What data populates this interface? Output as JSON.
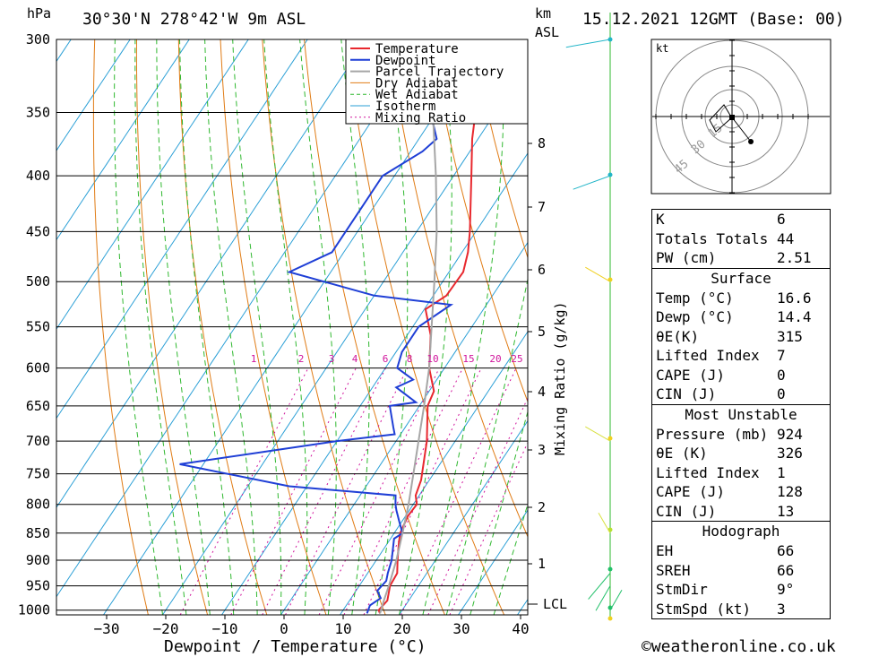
{
  "header": {
    "unit_left": "hPa",
    "location": "30°30'N 278°42'W 9m ASL",
    "unit_right_1": "km",
    "unit_right_2": "ASL",
    "datetime": "15.12.2021 12GMT (Base: 00)"
  },
  "footer": {
    "x_axis_title": "Dewpoint / Temperature (°C)",
    "copyright": "©weatheronline.co.uk"
  },
  "chart_data": {
    "type": "line",
    "title": "30°30'N 278°42'W 9m ASL",
    "xlabel": "Dewpoint / Temperature (°C)",
    "ylabel": "hPa",
    "y_scale": "log (pressure)",
    "x_skewed": true,
    "x_ticks": [
      -30,
      -20,
      -10,
      0,
      10,
      20,
      30,
      40
    ],
    "p_levels": [
      300,
      350,
      400,
      450,
      500,
      550,
      600,
      650,
      700,
      750,
      800,
      850,
      900,
      950,
      1000
    ],
    "km_ticks": [
      1,
      2,
      3,
      4,
      5,
      6,
      7,
      8
    ],
    "lcl_label": "LCL",
    "mixing_ratio_axis_label": "Mixing Ratio (g/kg)",
    "mixing_ratio_labels": [
      "1",
      "2",
      "3",
      "4",
      "6",
      "8",
      "10",
      "15",
      "20",
      "25"
    ],
    "legend_position": "top-right",
    "legend": [
      {
        "label": "Temperature",
        "color": "#e8282e",
        "style": "solid"
      },
      {
        "label": "Dewpoint",
        "color": "#1f3fd6",
        "style": "solid"
      },
      {
        "label": "Parcel Trajectory",
        "color": "#a6a6a6",
        "style": "solid"
      },
      {
        "label": "Dry Adiabat",
        "color": "#e07b14",
        "style": "solid"
      },
      {
        "label": "Wet Adiabat",
        "color": "#2fb82f",
        "style": "dashed"
      },
      {
        "label": "Isotherm",
        "color": "#2a9fd6",
        "style": "solid"
      },
      {
        "label": "Mixing Ratio",
        "color": "#d0149c",
        "style": "dotted"
      }
    ],
    "series": [
      {
        "name": "Temperature",
        "points": [
          [
            1007,
            16.6
          ],
          [
            1000,
            16.0
          ],
          [
            980,
            16.4
          ],
          [
            950,
            15.2
          ],
          [
            925,
            15.0
          ],
          [
            900,
            13.6
          ],
          [
            870,
            12.0
          ],
          [
            850,
            11.0
          ],
          [
            820,
            10.4
          ],
          [
            800,
            10.6
          ],
          [
            785,
            9.4
          ],
          [
            760,
            8.6
          ],
          [
            700,
            5.2
          ],
          [
            650,
            1.4
          ],
          [
            630,
            0.8
          ],
          [
            600,
            -2.6
          ],
          [
            560,
            -6.0
          ],
          [
            530,
            -9.8
          ],
          [
            515,
            -7.8
          ],
          [
            490,
            -7.6
          ],
          [
            470,
            -9.0
          ],
          [
            450,
            -11.0
          ],
          [
            400,
            -17.0
          ],
          [
            370,
            -21.0
          ],
          [
            350,
            -23.4
          ],
          [
            300,
            -30.4
          ]
        ]
      },
      {
        "name": "Dewpoint",
        "points": [
          [
            1007,
            14.4
          ],
          [
            990,
            14.0
          ],
          [
            975,
            15.0
          ],
          [
            960,
            13.6
          ],
          [
            940,
            14.0
          ],
          [
            925,
            13.4
          ],
          [
            900,
            12.6
          ],
          [
            860,
            10.6
          ],
          [
            850,
            11.4
          ],
          [
            830,
            9.6
          ],
          [
            810,
            7.8
          ],
          [
            800,
            7.0
          ],
          [
            785,
            6.0
          ],
          [
            770,
            -13.0
          ],
          [
            735,
            -34.0
          ],
          [
            700,
            -10.0
          ],
          [
            690,
            -1.0
          ],
          [
            680,
            -2.0
          ],
          [
            650,
            -5.0
          ],
          [
            645,
            -1.0
          ],
          [
            625,
            -6.0
          ],
          [
            615,
            -4.0
          ],
          [
            600,
            -8.0
          ],
          [
            580,
            -9.0
          ],
          [
            550,
            -9.0
          ],
          [
            525,
            -6.0
          ],
          [
            515,
            -20.0
          ],
          [
            490,
            -37.0
          ],
          [
            470,
            -32.0
          ],
          [
            430,
            -32.0
          ],
          [
            400,
            -32.0
          ],
          [
            380,
            -28.0
          ],
          [
            370,
            -27.0
          ],
          [
            350,
            -31.0
          ],
          [
            300,
            -33.0
          ]
        ]
      },
      {
        "name": "Parcel Trajectory",
        "points": [
          [
            1007,
            16.6
          ],
          [
            980,
            15.8
          ],
          [
            950,
            15.0
          ],
          [
            925,
            14.2
          ],
          [
            900,
            13.4
          ],
          [
            850,
            11.4
          ],
          [
            800,
            9.2
          ],
          [
            750,
            6.6
          ],
          [
            700,
            3.8
          ],
          [
            650,
            0.8
          ],
          [
            600,
            -2.6
          ],
          [
            550,
            -6.8
          ],
          [
            500,
            -11.4
          ],
          [
            450,
            -16.6
          ],
          [
            400,
            -23.0
          ],
          [
            350,
            -30.6
          ],
          [
            300,
            -40.0
          ]
        ]
      }
    ],
    "wind_profile": [
      {
        "p": 1000,
        "dir_deg": 30,
        "speed_kt": 5
      },
      {
        "p": 950,
        "dir_deg": 210,
        "speed_kt": 10
      },
      {
        "p": 925,
        "dir_deg": 220,
        "speed_kt": 15
      },
      {
        "p": 850,
        "dir_deg": 330,
        "speed_kt": 5
      },
      {
        "p": 700,
        "dir_deg": 300,
        "speed_kt": 10
      },
      {
        "p": 500,
        "dir_deg": 300,
        "speed_kt": 10
      },
      {
        "p": 400,
        "dir_deg": 250,
        "speed_kt": 20
      },
      {
        "p": 300,
        "dir_deg": 260,
        "speed_kt": 25
      }
    ],
    "hodograph": {
      "unit": "kt",
      "ring_labels": [
        "15",
        "30",
        "45"
      ],
      "storm_motion_dir_deg": 9,
      "storm_motion_kt": 3
    }
  },
  "indices": {
    "main": [
      {
        "label": "K",
        "value": "6"
      },
      {
        "label": "Totals Totals",
        "value": "44"
      },
      {
        "label": "PW (cm)",
        "value": "2.51"
      }
    ],
    "surface": {
      "title": "Surface",
      "rows": [
        {
          "label": "Temp (°C)",
          "value": "16.6"
        },
        {
          "label": "Dewp (°C)",
          "value": "14.4"
        },
        {
          "label": "θE(K)",
          "value": "315"
        },
        {
          "label": "Lifted Index",
          "value": "7"
        },
        {
          "label": "CAPE (J)",
          "value": "0"
        },
        {
          "label": "CIN (J)",
          "value": "0"
        }
      ]
    },
    "most_unstable": {
      "title": "Most Unstable",
      "rows": [
        {
          "label": "Pressure (mb)",
          "value": "924"
        },
        {
          "label": "θE (K)",
          "value": "326"
        },
        {
          "label": "Lifted Index",
          "value": "1"
        },
        {
          "label": "CAPE (J)",
          "value": "128"
        },
        {
          "label": "CIN (J)",
          "value": "13"
        }
      ]
    },
    "hodograph": {
      "title": "Hodograph",
      "rows": [
        {
          "label": "EH",
          "value": "66"
        },
        {
          "label": "SREH",
          "value": "66"
        },
        {
          "label": "StmDir",
          "value": "9°"
        },
        {
          "label": "StmSpd (kt)",
          "value": "3"
        }
      ]
    }
  },
  "colors": {
    "temperature": "#e8282e",
    "dewpoint": "#1f3fd6",
    "parcel": "#a6a6a6",
    "dry_adiabat": "#e07b14",
    "wet_adiabat": "#2fb82f",
    "isotherm": "#2a9fd6",
    "mixing_ratio": "#d0149c",
    "wind_line": "#2fb82f"
  }
}
